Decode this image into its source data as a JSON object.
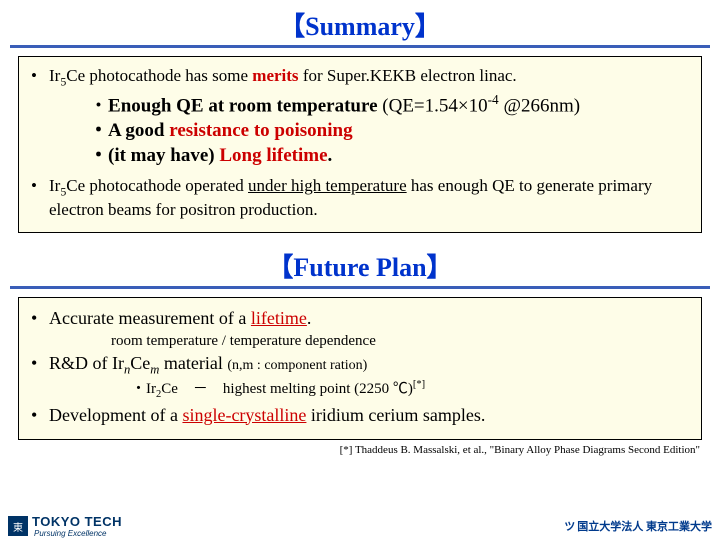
{
  "headings": {
    "summary": "【Summary】",
    "future": "【Future Plan】"
  },
  "summary": {
    "p1_pre": "Ir",
    "p1_sub": "5",
    "p1_mid": "Ce photocathode has some ",
    "p1_merits": "merits",
    "p1_post": " for Super.KEKB electron linac.",
    "m1_pre": "・",
    "m1_bold": "Enough QE at room temperature",
    "m1_tail": " (QE=1.54×10",
    "m1_sup": "-4",
    "m1_tail2": " @266nm)",
    "m2_pre": "・A good ",
    "m2_red": "resistance to poisoning",
    "m3_pre": "・(it may have) ",
    "m3_red": "Long lifetime",
    "m3_post": ".",
    "p2_pre": "Ir",
    "p2_sub": "5",
    "p2_mid": "Ce photocathode operated ",
    "p2_u": "under high temperature",
    "p2_post": " has enough QE to generate primary electron beams for positron production."
  },
  "future": {
    "f1_pre": "Accurate measurement of a ",
    "f1_red": "lifetime",
    "f1_post": ".",
    "f1_sub": "room temperature / temperature dependence",
    "f2_pre": "R&D of Ir",
    "f2_n": "n",
    "f2_mid": "Ce",
    "f2_m": "m",
    "f2_post": " material ",
    "f2_small": "(n,m : component ration)",
    "f2_sub_pre": "・Ir",
    "f2_sub_2": "2",
    "f2_sub_mid": "Ce　－　highest melting point (2250 ℃)",
    "f2_sub_ref": "[*]",
    "f3_pre": "Development of a ",
    "f3_red": "single-crystalline",
    "f3_post": " iridium cerium samples."
  },
  "footnote": "[*] Thaddeus B. Massalski, et al., \"Binary Alloy Phase Diagrams Second Edition\"",
  "footer": {
    "left_name": "TOKYO TECH",
    "left_tag": "Pursuing Excellence",
    "right": "国立大学法人 東京工業大学"
  },
  "colors": {
    "heading": "#0033cc",
    "box_bg": "#fefde8",
    "red": "#cc0000",
    "navy": "#003366"
  }
}
